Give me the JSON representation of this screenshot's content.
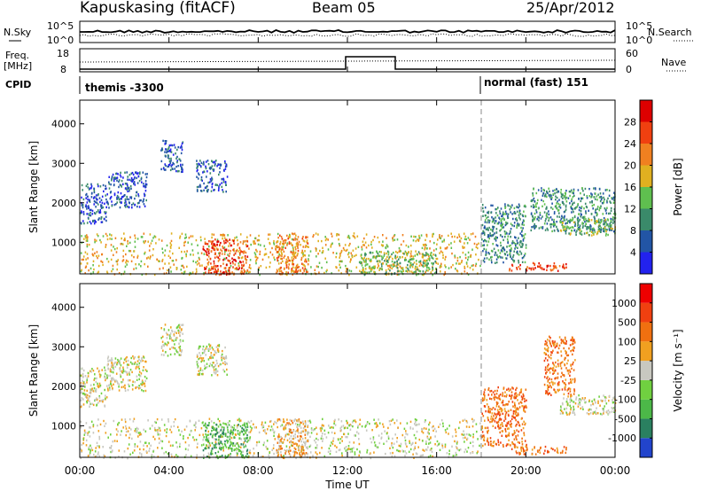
{
  "header": {
    "station": "Kapuskasing (fitACF)",
    "beam": "Beam 05",
    "date": "25/Apr/2012"
  },
  "top_panel": {
    "left_label": "N.Sky",
    "right_label": "N.Search",
    "left_ticks": [
      "10^5",
      "10^0"
    ],
    "right_ticks": [
      "10^5",
      "10^0"
    ]
  },
  "freq_panel": {
    "left_label_1": "Freq.",
    "left_label_2": "[MHz]",
    "right_label": "Nave",
    "left_ticks": [
      "18",
      "8"
    ],
    "right_ticks": [
      "60",
      "0"
    ]
  },
  "cpid": {
    "label": "CPID",
    "mode1": "themis -3300",
    "mode2": "normal (fast) 151"
  },
  "chart_data": [
    {
      "type": "heatmap",
      "title": "Power",
      "ylabel": "Slant Range [km]",
      "xlabel": "Time UT",
      "ylim": [
        200,
        4600
      ],
      "y_ticks": [
        "1000",
        "2000",
        "3000",
        "4000"
      ],
      "x_ticks": [
        "00:00",
        "04:00",
        "08:00",
        "12:00",
        "16:00",
        "20:00",
        "00:00"
      ],
      "colorbar": {
        "label": "Power [dB]",
        "ticks": [
          "4",
          "8",
          "12",
          "16",
          "20",
          "24",
          "28"
        ],
        "colors": [
          "#2222ee",
          "#2255a5",
          "#3a8a6a",
          "#5fbf4f",
          "#e0b020",
          "#f08020",
          "#f04010",
          "#dd0000"
        ]
      },
      "regions": [
        {
          "t0": 0.0,
          "t1": 18.0,
          "r0": 200,
          "r1": 1250,
          "level": 4
        },
        {
          "t0": 5.5,
          "t1": 7.5,
          "r0": 200,
          "r1": 1100,
          "level": 6
        },
        {
          "t0": 8.8,
          "t1": 10.2,
          "r0": 200,
          "r1": 1200,
          "level": 5
        },
        {
          "t0": 12.5,
          "t1": 16.0,
          "r0": 200,
          "r1": 800,
          "level": 3
        },
        {
          "t0": 0.0,
          "t1": 1.2,
          "r0": 1500,
          "r1": 2500,
          "level": 1
        },
        {
          "t0": 1.2,
          "t1": 3.0,
          "r0": 1900,
          "r1": 2800,
          "level": 1
        },
        {
          "t0": 3.6,
          "t1": 4.6,
          "r0": 2800,
          "r1": 3600,
          "level": 1
        },
        {
          "t0": 5.2,
          "t1": 6.6,
          "r0": 2300,
          "r1": 3100,
          "level": 1
        },
        {
          "t0": 18.0,
          "t1": 20.0,
          "r0": 500,
          "r1": 2000,
          "level": 2
        },
        {
          "t0": 19.2,
          "t1": 21.8,
          "r0": 300,
          "r1": 500,
          "level": 6
        },
        {
          "t0": 20.2,
          "t1": 24.0,
          "r0": 1300,
          "r1": 2400,
          "level": 2
        },
        {
          "t0": 21.5,
          "t1": 24.0,
          "r0": 1200,
          "r1": 1600,
          "level": 3
        }
      ]
    },
    {
      "type": "heatmap",
      "title": "Velocity",
      "ylabel": "Slant Range [km]",
      "xlabel": "Time UT",
      "ylim": [
        200,
        4600
      ],
      "y_ticks": [
        "1000",
        "2000",
        "3000",
        "4000"
      ],
      "x_ticks": [
        "00:00",
        "04:00",
        "08:00",
        "12:00",
        "16:00",
        "20:00",
        "00:00"
      ],
      "colorbar": {
        "label": "Velocity [m s⁻¹]",
        "ticks": [
          "1000",
          "500",
          "100",
          "25",
          "-25",
          "-100",
          "-500",
          "-1000"
        ],
        "colors": [
          "#2244cc",
          "#2a8060",
          "#4cb848",
          "#70d040",
          "#c8c8c0",
          "#f0a020",
          "#f07010",
          "#f04010",
          "#ee0000"
        ]
      },
      "regions": [
        {
          "t0": 0.0,
          "t1": 18.0,
          "r0": 200,
          "r1": 1200,
          "level": 4
        },
        {
          "t0": 5.5,
          "t1": 7.5,
          "r0": 200,
          "r1": 1100,
          "level": 2
        },
        {
          "t0": 8.8,
          "t1": 10.2,
          "r0": 200,
          "r1": 1200,
          "level": 5
        },
        {
          "t0": 0.0,
          "t1": 1.2,
          "r0": 1500,
          "r1": 2500,
          "level": 4
        },
        {
          "t0": 1.2,
          "t1": 3.0,
          "r0": 1900,
          "r1": 2800,
          "level": 4
        },
        {
          "t0": 3.6,
          "t1": 4.6,
          "r0": 2800,
          "r1": 3600,
          "level": 4
        },
        {
          "t0": 5.2,
          "t1": 6.6,
          "r0": 2300,
          "r1": 3100,
          "level": 4
        },
        {
          "t0": 18.0,
          "t1": 20.0,
          "r0": 500,
          "r1": 2000,
          "level": 6
        },
        {
          "t0": 19.2,
          "t1": 21.8,
          "r0": 300,
          "r1": 500,
          "level": 6
        },
        {
          "t0": 20.8,
          "t1": 22.2,
          "r0": 1800,
          "r1": 3300,
          "level": 6
        },
        {
          "t0": 21.5,
          "t1": 24.0,
          "r0": 1300,
          "r1": 1800,
          "level": 4
        }
      ]
    }
  ]
}
